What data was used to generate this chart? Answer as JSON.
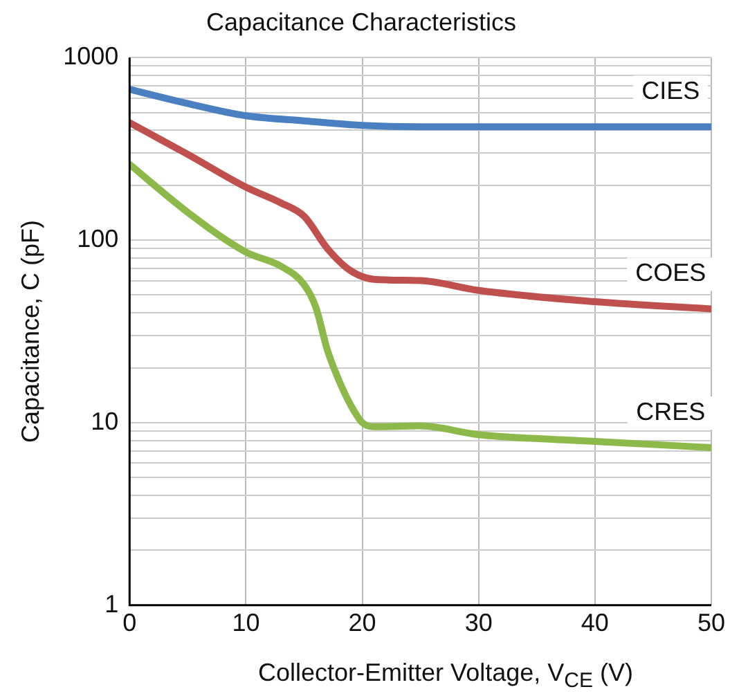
{
  "chart_data": {
    "type": "line",
    "title": "Capacitance Characteristics",
    "xlabel": "Collector-Emitter Voltage, V$_{CE}$ (V)",
    "ylabel": "Capacitance, C (pF)",
    "log": "y",
    "grid": true,
    "marker": "none",
    "line_style": "solid",
    "legend": false,
    "xlim": [
      0,
      50
    ],
    "xticks": [
      0,
      10,
      20,
      30,
      40,
      50
    ],
    "ylim": [
      1,
      1000
    ],
    "yticks": [
      1,
      {
        "value": 2,
        "label": null
      },
      {
        "value": 3,
        "label": null
      },
      {
        "value": 4,
        "label": null
      },
      {
        "value": 5,
        "label": null
      },
      {
        "value": 6,
        "label": null
      },
      {
        "value": 7,
        "label": null
      },
      {
        "value": 8,
        "label": null
      },
      {
        "value": 9,
        "label": null
      },
      10,
      {
        "value": 20,
        "label": null
      },
      {
        "value": 30,
        "label": null
      },
      {
        "value": 40,
        "label": null
      },
      {
        "value": 50,
        "label": null
      },
      {
        "value": 60,
        "label": null
      },
      {
        "value": 70,
        "label": null
      },
      {
        "value": 80,
        "label": null
      },
      {
        "value": 90,
        "label": null
      },
      100,
      {
        "value": 200,
        "label": null
      },
      {
        "value": 300,
        "label": null
      },
      {
        "value": 400,
        "label": null
      },
      {
        "value": 500,
        "label": null
      },
      {
        "value": 600,
        "label": null
      },
      {
        "value": 700,
        "label": null
      },
      {
        "value": 800,
        "label": null
      },
      {
        "value": 900,
        "label": null
      },
      1000
    ],
    "series": [
      {
        "name": "CIES",
        "color": "#4a7fc1",
        "x": [
          0,
          5,
          10,
          15,
          20,
          25,
          30,
          40,
          50
        ],
        "values": [
          670,
          560,
          480,
          450,
          425,
          418,
          418,
          418,
          418
        ]
      },
      {
        "name": "COES",
        "color": "#c0504d",
        "x": [
          0,
          5,
          10,
          13,
          15,
          17,
          19,
          21,
          25,
          30,
          40,
          50
        ],
        "values": [
          440,
          295,
          195,
          160,
          135,
          90,
          68,
          61,
          60,
          53,
          46,
          42
        ]
      },
      {
        "name": "CRES",
        "color": "#8db84a",
        "x": [
          0,
          5,
          10,
          13,
          15,
          16,
          17,
          18,
          19,
          20,
          21,
          25,
          30,
          40,
          50
        ],
        "values": [
          260,
          142,
          86,
          72,
          57,
          43,
          25,
          17,
          12.5,
          10,
          9.5,
          9.6,
          8.6,
          7.9,
          7.3
        ]
      }
    ]
  }
}
